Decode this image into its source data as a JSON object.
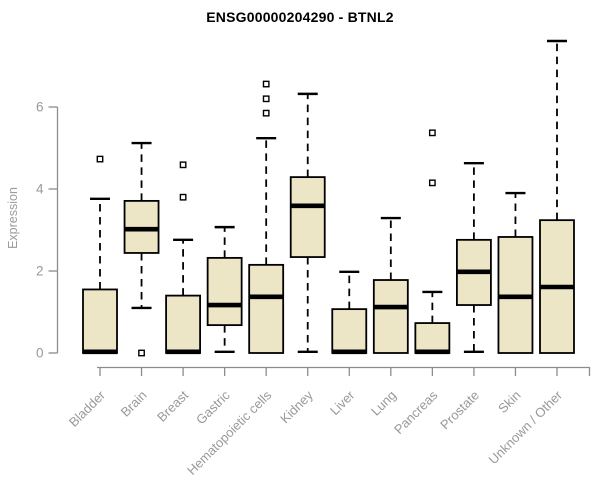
{
  "chart_data": {
    "type": "boxplot",
    "title": "ENSG00000204290 - BTNL2",
    "xlabel": "",
    "ylabel": "Expression",
    "ylim": [
      0,
      6
    ],
    "yticks": [
      0,
      2,
      4,
      6
    ],
    "grid": false,
    "legend": null,
    "categories": [
      "Bladder",
      "Brain",
      "Breast",
      "Gastric",
      "Hematopoietic cells",
      "Kidney",
      "Liver",
      "Lung",
      "Pancreas",
      "Prostate",
      "Skin",
      "Unknown / Other"
    ],
    "series": [
      {
        "category": "Bladder",
        "whisker_low": 0,
        "q1": 0,
        "median": 0.03,
        "q3": 1.55,
        "whisker_high": 3.76,
        "outliers": [
          4.73
        ]
      },
      {
        "category": "Brain",
        "whisker_low": 1.1,
        "q1": 2.44,
        "median": 3.02,
        "q3": 3.71,
        "whisker_high": 5.12,
        "outliers": [
          0
        ]
      },
      {
        "category": "Breast",
        "whisker_low": 0,
        "q1": 0,
        "median": 0.03,
        "q3": 1.4,
        "whisker_high": 2.76,
        "outliers": [
          3.8,
          4.59
        ]
      },
      {
        "category": "Gastric",
        "whisker_low": 0.03,
        "q1": 0.68,
        "median": 1.17,
        "q3": 2.32,
        "whisker_high": 3.07,
        "outliers": []
      },
      {
        "category": "Hematopoietic cells",
        "whisker_low": 0,
        "q1": 0,
        "median": 1.37,
        "q3": 2.15,
        "whisker_high": 5.24,
        "outliers": [
          5.85,
          6.2,
          6.56
        ]
      },
      {
        "category": "Kidney",
        "whisker_low": 0.03,
        "q1": 2.34,
        "median": 3.59,
        "q3": 4.29,
        "whisker_high": 6.32,
        "outliers": []
      },
      {
        "category": "Liver",
        "whisker_low": 0,
        "q1": 0,
        "median": 0.03,
        "q3": 1.07,
        "whisker_high": 1.98,
        "outliers": []
      },
      {
        "category": "Lung",
        "whisker_low": 0,
        "q1": 0,
        "median": 1.12,
        "q3": 1.78,
        "whisker_high": 3.29,
        "outliers": []
      },
      {
        "category": "Pancreas",
        "whisker_low": 0,
        "q1": 0,
        "median": 0.03,
        "q3": 0.73,
        "whisker_high": 1.49,
        "outliers": [
          4.15,
          5.37
        ]
      },
      {
        "category": "Prostate",
        "whisker_low": 0.03,
        "q1": 1.17,
        "median": 1.98,
        "q3": 2.76,
        "whisker_high": 4.63,
        "outliers": []
      },
      {
        "category": "Skin",
        "whisker_low": 0,
        "q1": 0,
        "median": 1.37,
        "q3": 2.83,
        "whisker_high": 3.9,
        "outliers": []
      },
      {
        "category": "Unknown / Other",
        "whisker_low": 0,
        "q1": 0,
        "median": 1.61,
        "q3": 3.24,
        "whisker_high": 7.61,
        "outliers": []
      }
    ],
    "colors": {
      "box_fill": "#ece5c6",
      "box_border": "#000000",
      "median": "#000000",
      "whisker": "#000000",
      "axis_line": "#8c8c8c",
      "tick_label": "#999999",
      "title": "#000000",
      "background": "#ffffff"
    }
  }
}
